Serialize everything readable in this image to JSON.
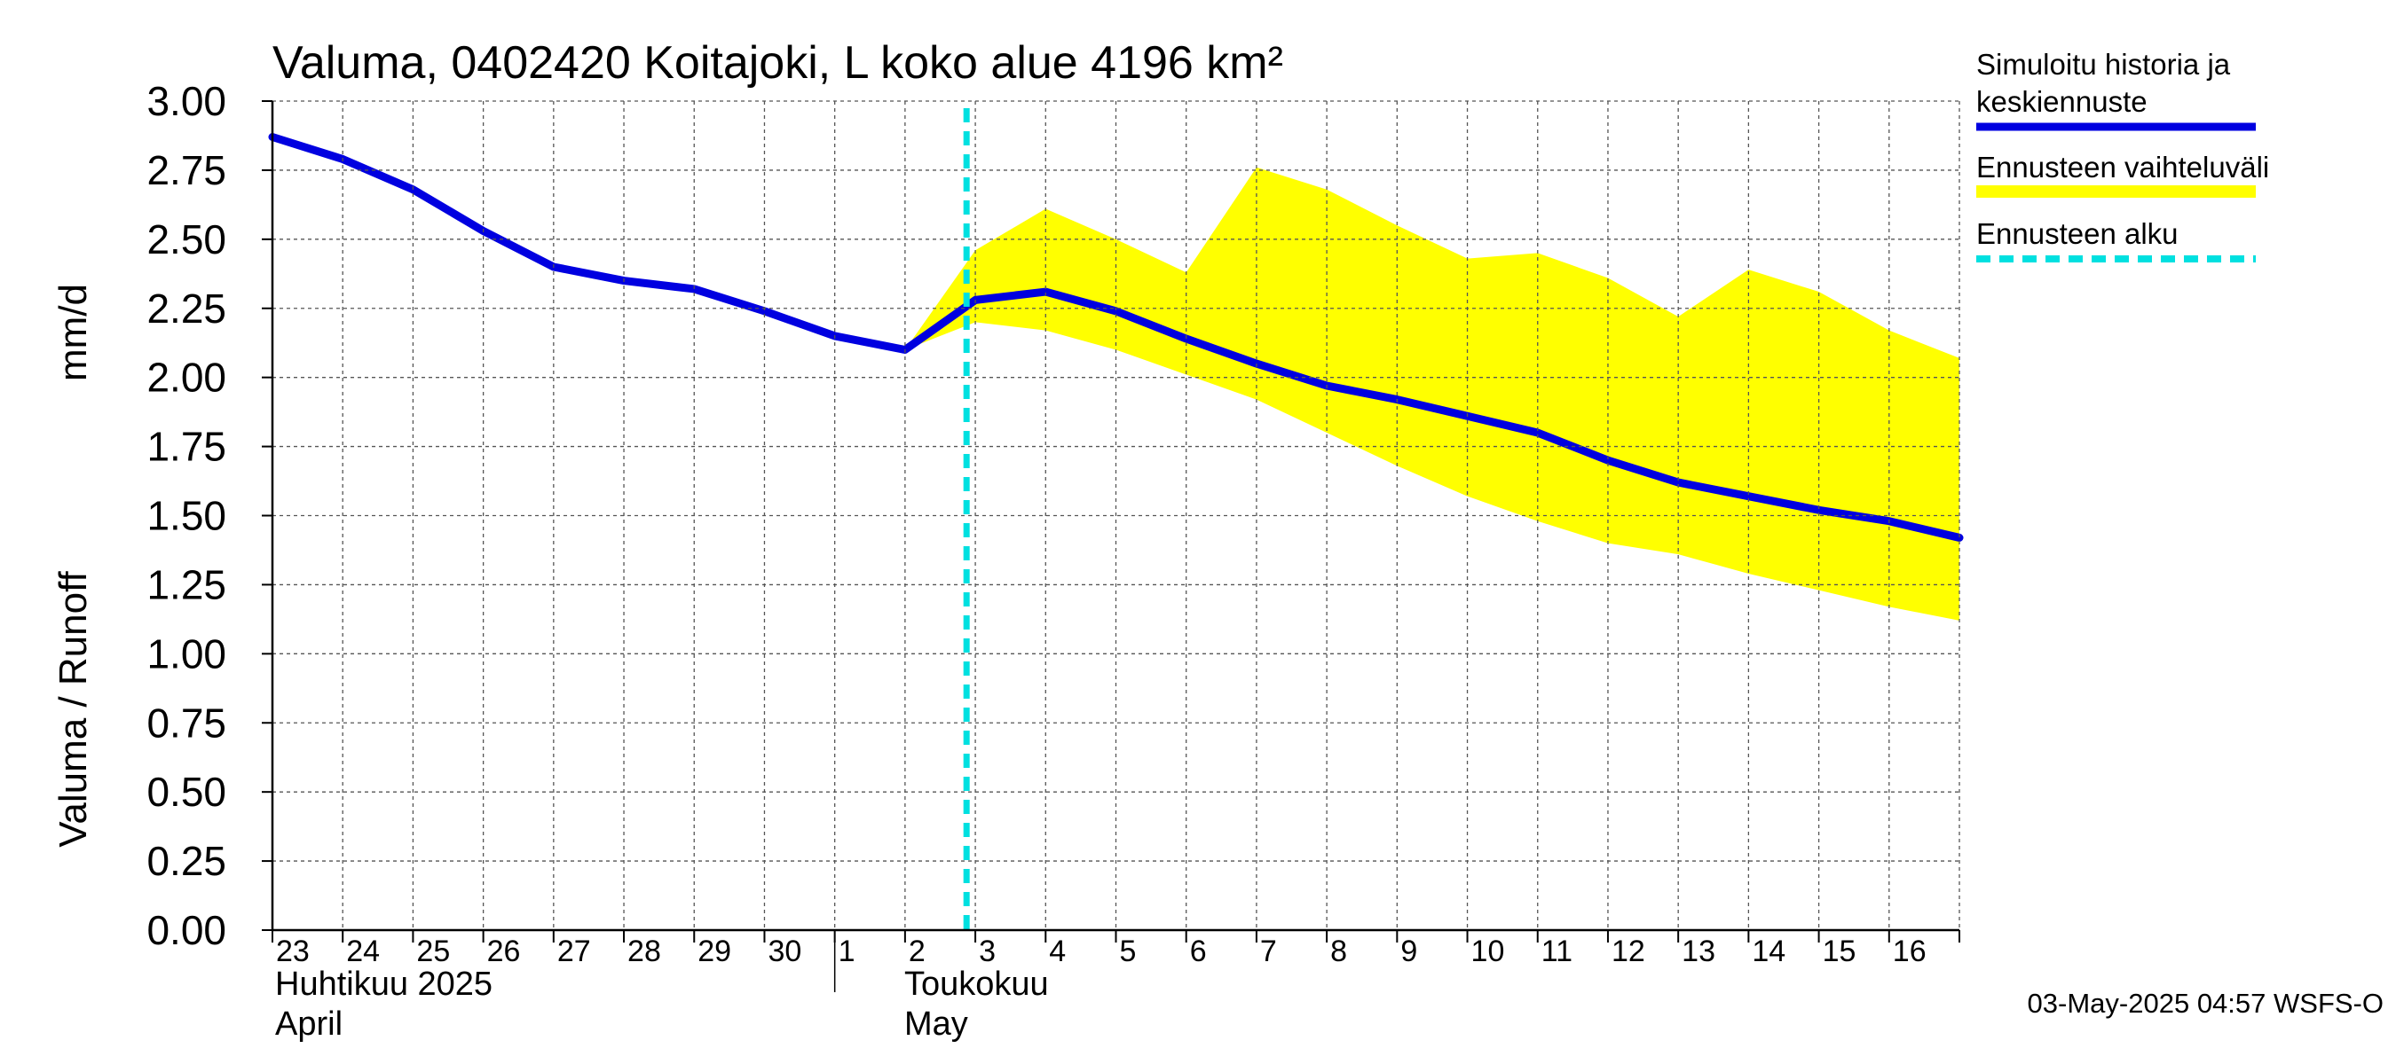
{
  "chart_data": {
    "type": "line",
    "title": "Valuma, 0402420 Koitajoki, L koko alue 4196 km²",
    "ylabel_left": "Valuma / Runoff",
    "ylabel_right": "mm/d",
    "ylim": [
      0,
      3
    ],
    "yticks": [
      "0.00",
      "0.25",
      "0.50",
      "0.75",
      "1.00",
      "1.25",
      "1.50",
      "1.75",
      "2.00",
      "2.25",
      "2.50",
      "2.75",
      "3.00"
    ],
    "x_dates": [
      "2025-04-23",
      "2025-04-24",
      "2025-04-25",
      "2025-04-26",
      "2025-04-27",
      "2025-04-28",
      "2025-04-29",
      "2025-04-30",
      "2025-05-01",
      "2025-05-02",
      "2025-05-03",
      "2025-05-04",
      "2025-05-05",
      "2025-05-06",
      "2025-05-07",
      "2025-05-08",
      "2025-05-09",
      "2025-05-10",
      "2025-05-11",
      "2025-05-12",
      "2025-05-13",
      "2025-05-14",
      "2025-05-15",
      "2025-05-16",
      "2025-05-17"
    ],
    "x_tick_labels": [
      "23",
      "24",
      "25",
      "26",
      "27",
      "28",
      "29",
      "30",
      "1",
      "2",
      "3",
      "4",
      "5",
      "6",
      "7",
      "8",
      "9",
      "10",
      "11",
      "12",
      "13",
      "14",
      "15",
      "16"
    ],
    "month_labels": [
      {
        "line1": "Huhtikuu  2025",
        "line2": "April"
      },
      {
        "line1": "Toukokuu",
        "line2": "May"
      }
    ],
    "series": [
      {
        "name": "Simuloitu historia ja keskiennuste",
        "color": "#0000e0",
        "values": [
          2.87,
          2.79,
          2.68,
          2.53,
          2.4,
          2.35,
          2.32,
          2.24,
          2.15,
          2.1,
          2.28,
          2.31,
          2.24,
          2.14,
          2.05,
          1.97,
          1.92,
          1.86,
          1.8,
          1.7,
          1.62,
          1.57,
          1.52,
          1.48,
          1.42
        ]
      }
    ],
    "band": {
      "name": "Ennusteen vaihteluväli",
      "color": "#ffff00",
      "start_index": 9,
      "upper": [
        2.1,
        2.46,
        2.61,
        2.5,
        2.38,
        2.76,
        2.68,
        2.55,
        2.43,
        2.45,
        2.36,
        2.22,
        2.39,
        2.31,
        2.17,
        2.07
      ],
      "lower": [
        2.1,
        2.2,
        2.17,
        2.1,
        2.01,
        1.92,
        1.8,
        1.68,
        1.57,
        1.48,
        1.4,
        1.36,
        1.29,
        1.23,
        1.17,
        1.12
      ]
    },
    "forecast_start": {
      "name": "Ennusteen alku",
      "color": "#00e0e0",
      "x_value": "2025-05-02 21:00"
    },
    "legend": [
      {
        "label_line1": "Simuloitu historia ja",
        "label_line2": "keskiennuste",
        "color": "#0000e0",
        "style": "solid"
      },
      {
        "label_line1": "Ennusteen vaihteluväli",
        "label_line2": "",
        "color": "#ffff00",
        "style": "solid"
      },
      {
        "label_line1": "Ennusteen alku",
        "label_line2": "",
        "color": "#00e0e0",
        "style": "dashed"
      }
    ],
    "legend_placement": "right",
    "grid": true,
    "footer": "03-May-2025 04:57 WSFS-O"
  }
}
